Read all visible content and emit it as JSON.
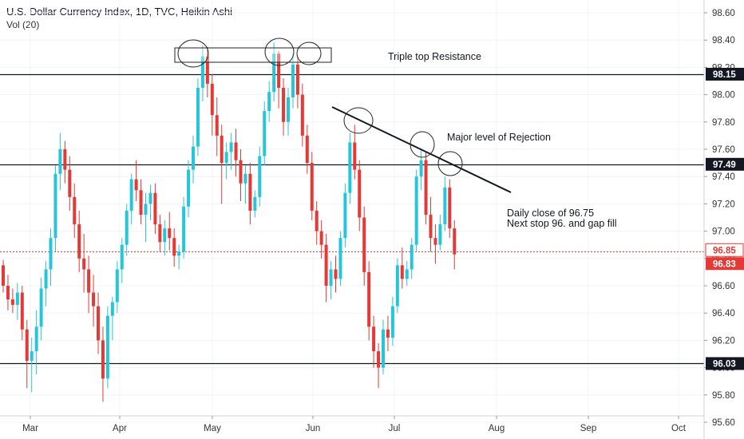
{
  "header": {
    "title": "U.S. Dollar Currency Index, 1D, TVC, Heikin Ashi",
    "subtitle": "Vol (20)"
  },
  "colors": {
    "up": "#26c6da",
    "down": "#e53935",
    "axis_text": "#333333",
    "badge_bg": "#131722",
    "last_price": "#e53935"
  },
  "chart_data": {
    "type": "candlestick",
    "x_ticks": [
      "Mar",
      "Apr",
      "May",
      "Jun",
      "Jul",
      "Aug",
      "Sep",
      "Oct"
    ],
    "y_ticks": [
      "98.60",
      "98.40",
      "98.20",
      "98.00",
      "97.80",
      "97.60",
      "97.40",
      "97.20",
      "97.00",
      "96.80",
      "96.60",
      "96.40",
      "96.20",
      "96.00",
      "95.80",
      "95.60"
    ],
    "ylim": [
      95.5,
      98.7
    ],
    "horizontal_levels": [
      {
        "value": 98.15,
        "label": "98.15"
      },
      {
        "value": 97.49,
        "label": "97.49"
      },
      {
        "value": 96.03,
        "label": "96.03"
      }
    ],
    "price_labels": [
      {
        "value": 96.85,
        "label": "96.85",
        "style": "outline"
      },
      {
        "value": 96.83,
        "label": "96.83",
        "style": "filled"
      }
    ],
    "annotations": [
      {
        "text": "Triple top Resistance"
      },
      {
        "text": "Major level of Rejection"
      },
      {
        "text": "Daily close of 96.75"
      },
      {
        "text": "Next stop 96. and gap fill"
      }
    ],
    "candles": [
      [
        96.75,
        96.79,
        96.55,
        96.6
      ],
      [
        96.6,
        96.68,
        96.42,
        96.5
      ],
      [
        96.5,
        96.58,
        96.4,
        96.46
      ],
      [
        96.46,
        96.62,
        96.35,
        96.55
      ],
      [
        96.55,
        96.6,
        96.2,
        96.28
      ],
      [
        96.28,
        96.35,
        95.85,
        96.05
      ],
      [
        96.05,
        96.22,
        95.82,
        96.12
      ],
      [
        96.12,
        96.42,
        95.95,
        96.3
      ],
      [
        96.3,
        96.66,
        96.2,
        96.58
      ],
      [
        96.58,
        96.78,
        96.45,
        96.72
      ],
      [
        96.72,
        97.02,
        96.6,
        96.95
      ],
      [
        96.95,
        97.48,
        96.85,
        97.42
      ],
      [
        97.42,
        97.72,
        97.3,
        97.6
      ],
      [
        97.6,
        97.66,
        97.35,
        97.45
      ],
      [
        97.45,
        97.55,
        97.15,
        97.25
      ],
      [
        97.25,
        97.35,
        96.95,
        97.05
      ],
      [
        97.05,
        97.15,
        96.7,
        96.8
      ],
      [
        96.8,
        96.98,
        96.55,
        96.72
      ],
      [
        96.72,
        96.82,
        96.4,
        96.55
      ],
      [
        96.55,
        96.68,
        96.3,
        96.45
      ],
      [
        96.45,
        96.55,
        96.1,
        96.2
      ],
      [
        96.2,
        96.3,
        95.75,
        95.92
      ],
      [
        95.92,
        96.45,
        95.85,
        96.38
      ],
      [
        96.38,
        96.52,
        96.2,
        96.48
      ],
      [
        96.48,
        96.78,
        96.4,
        96.72
      ],
      [
        96.72,
        96.95,
        96.62,
        96.9
      ],
      [
        96.9,
        97.2,
        96.82,
        97.15
      ],
      [
        97.15,
        97.42,
        97.05,
        97.38
      ],
      [
        97.38,
        97.52,
        97.22,
        97.3
      ],
      [
        97.3,
        97.38,
        97.05,
        97.12
      ],
      [
        97.12,
        97.28,
        96.92,
        97.2
      ],
      [
        97.2,
        97.34,
        97.08,
        97.28
      ],
      [
        97.28,
        97.35,
        96.98,
        97.05
      ],
      [
        97.05,
        97.12,
        96.85,
        96.92
      ],
      [
        96.92,
        97.08,
        96.82,
        97.02
      ],
      [
        97.02,
        97.14,
        96.86,
        96.95
      ],
      [
        96.95,
        97.02,
        96.74,
        96.82
      ],
      [
        96.82,
        96.9,
        96.72,
        96.85
      ],
      [
        96.85,
        97.25,
        96.8,
        97.18
      ],
      [
        97.18,
        97.52,
        97.1,
        97.45
      ],
      [
        97.45,
        97.7,
        97.35,
        97.62
      ],
      [
        97.62,
        98.12,
        97.55,
        98.05
      ],
      [
        98.05,
        98.36,
        97.95,
        98.28
      ],
      [
        98.28,
        98.35,
        97.98,
        98.08
      ],
      [
        98.08,
        98.15,
        97.7,
        97.85
      ],
      [
        97.85,
        97.98,
        97.55,
        97.7
      ],
      [
        97.7,
        97.78,
        97.2,
        97.5
      ],
      [
        97.5,
        97.65,
        97.38,
        97.58
      ],
      [
        97.58,
        97.72,
        97.45,
        97.65
      ],
      [
        97.65,
        97.75,
        97.4,
        97.52
      ],
      [
        97.52,
        97.6,
        97.22,
        97.35
      ],
      [
        97.35,
        97.48,
        97.2,
        97.42
      ],
      [
        97.42,
        97.5,
        97.05,
        97.15
      ],
      [
        97.15,
        97.3,
        97.1,
        97.25
      ],
      [
        97.25,
        97.62,
        97.18,
        97.55
      ],
      [
        97.55,
        97.95,
        97.48,
        97.88
      ],
      [
        97.88,
        98.1,
        97.8,
        98.02
      ],
      [
        98.02,
        98.38,
        97.95,
        98.3
      ],
      [
        98.3,
        98.32,
        97.9,
        98.05
      ],
      [
        98.05,
        98.12,
        97.7,
        97.8
      ],
      [
        97.8,
        98.05,
        97.7,
        97.98
      ],
      [
        97.98,
        98.3,
        97.9,
        98.22
      ],
      [
        98.22,
        98.28,
        97.9,
        98.0
      ],
      [
        98.0,
        98.08,
        97.62,
        97.7
      ],
      [
        97.7,
        97.78,
        97.42,
        97.5
      ],
      [
        97.5,
        97.58,
        97.08,
        97.15
      ],
      [
        97.15,
        97.22,
        96.9,
        97.0
      ],
      [
        97.0,
        97.08,
        96.8,
        96.9
      ],
      [
        96.9,
        96.98,
        96.48,
        96.6
      ],
      [
        96.6,
        96.78,
        96.5,
        96.72
      ],
      [
        96.72,
        96.82,
        96.55,
        96.65
      ],
      [
        96.65,
        97.0,
        96.6,
        96.95
      ],
      [
        96.95,
        97.35,
        96.88,
        97.28
      ],
      [
        97.28,
        97.72,
        97.2,
        97.65
      ],
      [
        97.65,
        97.78,
        97.38,
        97.45
      ],
      [
        97.45,
        97.52,
        97.0,
        97.1
      ],
      [
        97.1,
        97.18,
        96.6,
        96.7
      ],
      [
        96.7,
        96.78,
        96.2,
        96.3
      ],
      [
        96.3,
        96.38,
        96.0,
        96.12
      ],
      [
        96.12,
        96.18,
        95.85,
        96.0
      ],
      [
        96.0,
        96.35,
        95.95,
        96.28
      ],
      [
        96.28,
        96.38,
        96.12,
        96.22
      ],
      [
        96.22,
        96.52,
        96.16,
        96.45
      ],
      [
        96.45,
        96.8,
        96.4,
        96.75
      ],
      [
        96.75,
        96.88,
        96.58,
        96.65
      ],
      [
        96.65,
        96.78,
        96.6,
        96.72
      ],
      [
        96.72,
        96.95,
        96.65,
        96.9
      ],
      [
        96.9,
        97.45,
        96.85,
        97.4
      ],
      [
        97.4,
        97.6,
        97.3,
        97.52
      ],
      [
        97.52,
        97.58,
        97.05,
        97.12
      ],
      [
        97.12,
        97.25,
        96.85,
        96.95
      ],
      [
        96.95,
        97.05,
        96.76,
        96.9
      ],
      [
        96.9,
        97.12,
        96.86,
        97.05
      ],
      [
        97.05,
        97.4,
        97.0,
        97.32
      ],
      [
        97.32,
        97.38,
        96.95,
        97.02
      ],
      [
        97.02,
        97.08,
        96.72,
        96.83
      ]
    ]
  }
}
